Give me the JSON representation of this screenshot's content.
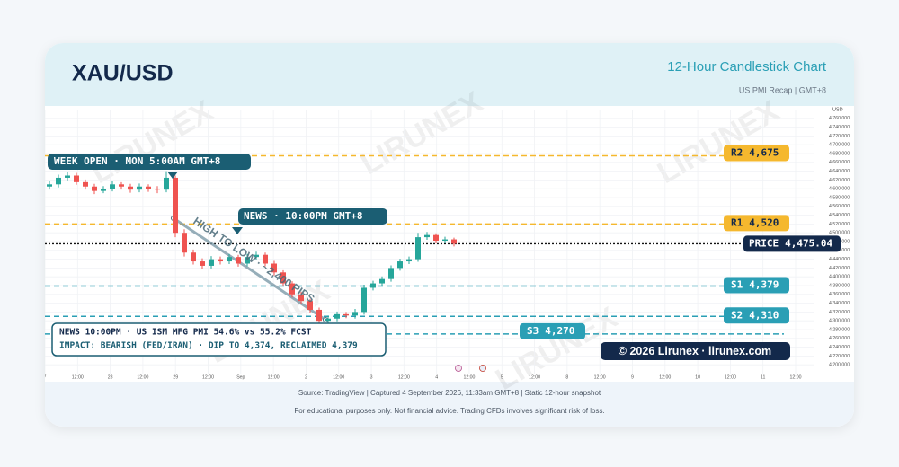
{
  "header": {
    "title": "XAU/USD",
    "subtitle": "12-Hour Candlestick Chart",
    "note": "US PMI Recap | GMT+8"
  },
  "chart_data": {
    "type": "candlestick",
    "y_unit": "USD",
    "watermark": "LIRUNEX",
    "up_color": "#26a69a",
    "down_color": "#ef5350",
    "grid": true,
    "ylim": [
      4180,
      4780
    ],
    "yticks": [
      {
        "value": 4200,
        "label": "4,200.000"
      },
      {
        "value": 4220,
        "label": "4,220.000"
      },
      {
        "value": 4240,
        "label": "4,240.000"
      },
      {
        "value": 4260,
        "label": "4,260.000"
      },
      {
        "value": 4280,
        "label": "4,280.000"
      },
      {
        "value": 4300,
        "label": "4,300.000"
      },
      {
        "value": 4320,
        "label": "4,320.000"
      },
      {
        "value": 4340,
        "label": "4,340.000"
      },
      {
        "value": 4360,
        "label": "4,360.000"
      },
      {
        "value": 4380,
        "label": "4,380.000"
      },
      {
        "value": 4400,
        "label": "4,400.000"
      },
      {
        "value": 4420,
        "label": "4,420.000"
      },
      {
        "value": 4440,
        "label": "4,440.000"
      },
      {
        "value": 4460,
        "label": "4,460.000"
      },
      {
        "value": 4480,
        "label": "4,480.000"
      },
      {
        "value": 4500,
        "label": "4,500.000"
      },
      {
        "value": 4520,
        "label": "4,520.000"
      },
      {
        "value": 4540,
        "label": "4,540.000"
      },
      {
        "value": 4560,
        "label": "4,560.000"
      },
      {
        "value": 4580,
        "label": "4,580.000"
      },
      {
        "value": 4600,
        "label": "4,600.000"
      },
      {
        "value": 4620,
        "label": "4,620.000"
      },
      {
        "value": 4640,
        "label": "4,640.000"
      },
      {
        "value": 4660,
        "label": "4,660.000"
      },
      {
        "value": 4680,
        "label": "4,680.000"
      },
      {
        "value": 4700,
        "label": "4,700.000"
      },
      {
        "value": 4720,
        "label": "4,720.000"
      },
      {
        "value": 4740,
        "label": "4,740.000"
      },
      {
        "value": 4760,
        "label": "4,760.000"
      }
    ],
    "x_labels": [
      "7",
      "12:00",
      "28",
      "12:00",
      "29",
      "12:00",
      "Sep",
      "12:00",
      "2",
      "12:00",
      "3",
      "12:00",
      "4",
      "12:00",
      "5",
      "12:00",
      "8",
      "12:00",
      "9",
      "12:00",
      "10",
      "12:00",
      "11",
      "12:00"
    ],
    "candles": {
      "open": [
        4605,
        4610,
        4625,
        4630,
        4615,
        4605,
        4595,
        4600,
        4610,
        4605,
        4598,
        4605,
        4600,
        4598,
        4625,
        4500,
        4455,
        4435,
        4425,
        4440,
        4435,
        4445,
        4430,
        4445,
        4450,
        4430,
        4410,
        4385,
        4360,
        4345,
        4325,
        4300,
        4305,
        4315,
        4312,
        4320,
        4375,
        4385,
        4395,
        4420,
        4435,
        4440,
        4490,
        4495,
        4482,
        4485
      ],
      "high": [
        4617,
        4632,
        4638,
        4636,
        4621,
        4611,
        4606,
        4617,
        4615,
        4611,
        4612,
        4610,
        4606,
        4640,
        4630,
        4508,
        4462,
        4442,
        4447,
        4446,
        4452,
        4450,
        4452,
        4457,
        4455,
        4436,
        4415,
        4390,
        4366,
        4350,
        4330,
        4312,
        4321,
        4320,
        4327,
        4382,
        4391,
        4401,
        4426,
        4441,
        4446,
        4500,
        4502,
        4499,
        4491,
        4489
      ],
      "low": [
        4598,
        4603,
        4619,
        4609,
        4598,
        4588,
        4590,
        4594,
        4598,
        4591,
        4592,
        4593,
        4590,
        4592,
        4490,
        4446,
        4428,
        4417,
        4419,
        4428,
        4429,
        4423,
        4424,
        4438,
        4424,
        4403,
        4378,
        4353,
        4338,
        4318,
        4288,
        4292,
        4299,
        4306,
        4305,
        4314,
        4369,
        4379,
        4389,
        4414,
        4429,
        4434,
        4484,
        4476,
        4476,
        4469
      ],
      "close": [
        4610,
        4625,
        4630,
        4615,
        4605,
        4595,
        4600,
        4610,
        4605,
        4598,
        4605,
        4600,
        4598,
        4625,
        4500,
        4455,
        4435,
        4425,
        4440,
        4435,
        4445,
        4430,
        4445,
        4450,
        4430,
        4410,
        4385,
        4360,
        4345,
        4325,
        4300,
        4305,
        4315,
        4312,
        4320,
        4375,
        4385,
        4395,
        4420,
        4435,
        4440,
        4490,
        4495,
        4482,
        4485,
        4475
      ]
    },
    "levels": [
      {
        "name": "R2",
        "value": 4675,
        "value_label": "4,675",
        "color": "#f5b82e"
      },
      {
        "name": "R1",
        "value": 4520,
        "value_label": "4,520",
        "color": "#f5b82e"
      },
      {
        "name": "S1",
        "value": 4379,
        "value_label": "4,379",
        "color": "#2a9fb5"
      },
      {
        "name": "S2",
        "value": 4310,
        "value_label": "4,310",
        "color": "#2a9fb5"
      },
      {
        "name": "S3",
        "value": 4270,
        "value_label": "4,270",
        "color": "#2a9fb5"
      }
    ],
    "price": {
      "name": "PRICE",
      "value": 4475.04,
      "value_label": "4,475.04",
      "color": "#13294b"
    },
    "annotations": {
      "week_open": "WEEK OPEN · MON 5:00AM GMT+8",
      "news": "NEWS · 10:00PM GMT+8",
      "range": "HIGH TO LOW · ~2,400 PIPS",
      "news_line1": "NEWS 10:00PM · US ISM MFG PMI 54.6% vs 55.2% FCST",
      "news_line2": "IMPACT: BEARISH (FED/IRAN) · DIP TO 4,374, RECLAIMED 4,379",
      "copyright": "© 2026 Lirunex · lirunex.com"
    }
  },
  "footer": {
    "source": "Source: TradingView | Captured 4 September 2026, 11:33am GMT+8 | Static 12-hour snapshot",
    "disclaimer": "For educational purposes only. Not financial advice. Trading CFDs involves significant risk of loss."
  }
}
